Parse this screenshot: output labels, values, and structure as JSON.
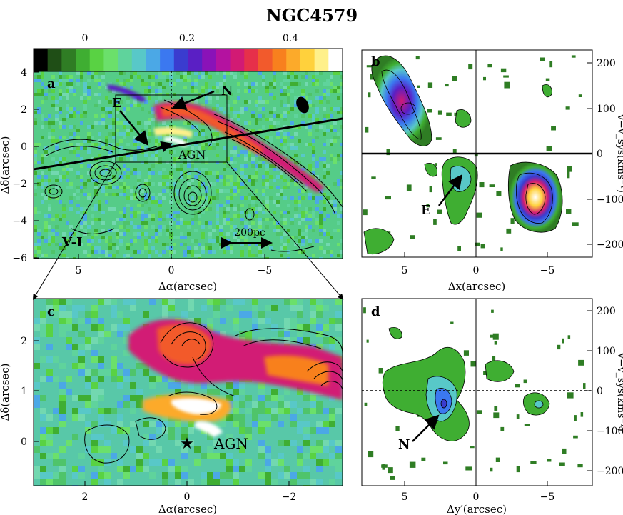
{
  "figure": {
    "title": "NGC4579",
    "colorbar": {
      "ticks": [
        "0",
        "0.2",
        "0.4"
      ],
      "colors": [
        "#000000",
        "#1f4e16",
        "#2f7d24",
        "#3fae32",
        "#59d243",
        "#6be06b",
        "#5fd39c",
        "#58c8c8",
        "#4ba8e6",
        "#3b78f0",
        "#3a3ccf",
        "#5a1fc4",
        "#8a12b8",
        "#b412a0",
        "#d21a74",
        "#e6304a",
        "#f25a2c",
        "#f8801e",
        "#fcaa2a",
        "#ffd13c",
        "#fff08a",
        "#ffffff"
      ]
    },
    "panels": {
      "a": {
        "letter": "a",
        "xlabel": "Δα(arcsec)",
        "ylabel": "Δδ(arcsec)",
        "xticks": [
          "5",
          "0",
          "−5"
        ],
        "yticks": [
          "4",
          "2",
          "0",
          "−2",
          "−4",
          "−6"
        ],
        "labels": {
          "N": "N",
          "E": "E",
          "AGN": "AGN",
          "vi": "V-I",
          "scale": "200pc"
        }
      },
      "b": {
        "letter": "b",
        "xlabel": "Δx(arcsec)",
        "ylabel": "v−v_sys(kms⁻¹)",
        "xticks": [
          "5",
          "0",
          "−5"
        ],
        "yticks": [
          "200",
          "100",
          "0",
          "−100",
          "−200"
        ],
        "labels": {
          "E": "E"
        }
      },
      "c": {
        "letter": "c",
        "xlabel": "Δα(arcsec)",
        "ylabel": "Δδ(arcsec)",
        "xticks": [
          "2",
          "0",
          "−2"
        ],
        "yticks": [
          "2",
          "1",
          "0"
        ],
        "labels": {
          "AGN": "AGN"
        }
      },
      "d": {
        "letter": "d",
        "xlabel": "Δy′(arcsec)",
        "ylabel": "v−v_sys(kms⁻¹)",
        "xticks": [
          "5",
          "0",
          "−5"
        ],
        "yticks": [
          "200",
          "100",
          "0",
          "−100",
          "−200"
        ],
        "labels": {
          "N": "N"
        }
      }
    }
  }
}
